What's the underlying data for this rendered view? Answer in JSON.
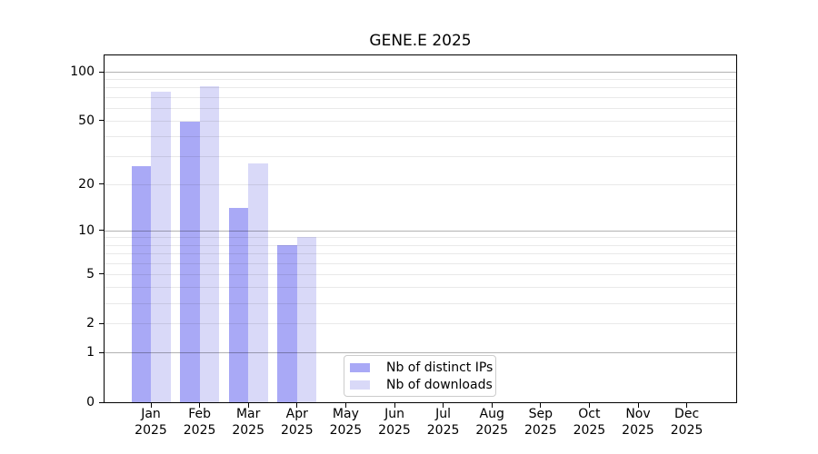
{
  "chart_data": {
    "type": "bar",
    "title": "GENE.E 2025",
    "categories": [
      "Jan",
      "Feb",
      "Mar",
      "Apr",
      "May",
      "Jun",
      "Jul",
      "Aug",
      "Sep",
      "Oct",
      "Nov",
      "Dec"
    ],
    "category_year": "2025",
    "series": [
      {
        "name": "Nb of distinct IPs",
        "color": "#a9a9f6",
        "values": [
          26,
          49,
          14,
          8,
          0,
          0,
          0,
          0,
          0,
          0,
          0,
          0
        ]
      },
      {
        "name": "Nb of downloads",
        "color": "#d9d9f8",
        "values": [
          75,
          81,
          27,
          9,
          0,
          0,
          0,
          0,
          0,
          0,
          0,
          0
        ]
      }
    ],
    "y_scale": "log1p",
    "ylim": [
      0,
      128
    ],
    "y_tick_labels": [
      "100",
      "50",
      "20",
      "10",
      "5",
      "2",
      "1",
      "0"
    ],
    "y_tick_values": [
      100,
      50,
      20,
      10,
      5,
      2,
      1,
      0
    ],
    "y_minor_gridlines": [
      2,
      3,
      4,
      5,
      6,
      7,
      8,
      9,
      20,
      30,
      40,
      50,
      60,
      70,
      80,
      90
    ],
    "y_major_gridlines": [
      1,
      10,
      100
    ],
    "grid": true,
    "legend_position": "lower center"
  },
  "colors": {
    "background": "#ffffff",
    "text": "#000000",
    "axis": "#000000",
    "minor_grid": "#e8e8e8",
    "major_grid": "#b3b3b3",
    "legend_border": "#cccccc"
  }
}
